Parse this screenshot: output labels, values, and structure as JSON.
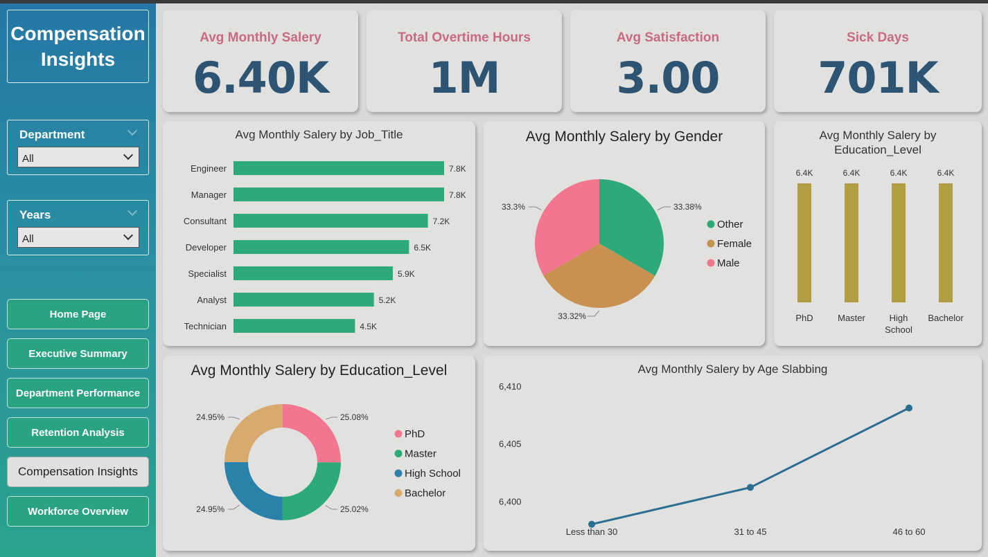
{
  "sidebar": {
    "title_line1": "Compensation",
    "title_line2": "Insights",
    "slicers": [
      {
        "label": "Department",
        "value": "All"
      },
      {
        "label": "Years",
        "value": "All"
      }
    ],
    "nav": [
      "Home Page",
      "Executive Summary",
      "Department Performance",
      "Retention Analysis",
      "Compensation Insights",
      "Workforce Overview"
    ],
    "active_nav": "Compensation Insights"
  },
  "kpis": [
    {
      "title": "Avg Monthly Salery",
      "value": "6.40K"
    },
    {
      "title": "Total Overtime Hours",
      "value": "1M"
    },
    {
      "title": "Avg Satisfaction",
      "value": "3.00"
    },
    {
      "title": "Sick Days",
      "value": "701K"
    }
  ],
  "colors": {
    "green": "#2eaa7a",
    "olive": "#b19d44",
    "pink": "#f2778e",
    "tan": "#c9914f",
    "blue": "#2a82aa",
    "sand": "#d8aa6e",
    "line": "#2b6e92",
    "kpi_title": "#c86a82",
    "kpi_value": "#2d5472"
  },
  "chart_data": [
    {
      "type": "bar",
      "orientation": "horizontal",
      "title": "Avg Monthly Salery by Job_Title",
      "categories": [
        "Engineer",
        "Manager",
        "Consultant",
        "Developer",
        "Specialist",
        "Analyst",
        "Technician"
      ],
      "values": [
        7.8,
        7.8,
        7.2,
        6.5,
        5.9,
        5.2,
        4.5
      ],
      "labels": [
        "7.8K",
        "7.8K",
        "7.2K",
        "6.5K",
        "5.9K",
        "5.2K",
        "4.5K"
      ]
    },
    {
      "type": "pie",
      "title": "Avg Monthly Salery by Gender",
      "categories": [
        "Other",
        "Female",
        "Male"
      ],
      "values": [
        33.38,
        33.32,
        33.3
      ],
      "labels": [
        "33.38%",
        "33.32%",
        "33.3%"
      ],
      "colors": [
        "#2eaa7a",
        "#c9914f",
        "#f2778e"
      ],
      "legend": "right"
    },
    {
      "type": "bar",
      "orientation": "vertical",
      "title_line1": "Avg Monthly Salery by",
      "title_line2": "Education_Level",
      "categories": [
        "PhD",
        "Master",
        "High School",
        "Bachelor"
      ],
      "category_lines": [
        [
          "PhD"
        ],
        [
          "Master"
        ],
        [
          "High",
          "School"
        ],
        [
          "Bachelor"
        ]
      ],
      "values": [
        6.4,
        6.4,
        6.4,
        6.4
      ],
      "labels": [
        "6.4K",
        "6.4K",
        "6.4K",
        "6.4K"
      ]
    },
    {
      "type": "donut",
      "title": "Avg Monthly Salery by Education_Level",
      "categories": [
        "PhD",
        "Master",
        "High School",
        "Bachelor"
      ],
      "values": [
        25.08,
        25.02,
        24.95,
        24.95
      ],
      "labels": [
        "25.08%",
        "25.02%",
        "24.95%",
        "24.95%"
      ],
      "colors": [
        "#f2778e",
        "#2eaa7a",
        "#2a82aa",
        "#d8aa6e"
      ],
      "legend": "right"
    },
    {
      "type": "line",
      "title": "Avg Monthly Salery by Age Slabbing",
      "categories": [
        "Less than 30",
        "31 to 45",
        "46 to 60"
      ],
      "values": [
        6398.0,
        6401.2,
        6408.1
      ],
      "ylim": [
        6397.5,
        6410
      ],
      "yticks": [
        6400,
        6405,
        6410
      ],
      "ytick_labels": [
        "6,400",
        "6,405",
        "6,410"
      ]
    }
  ]
}
